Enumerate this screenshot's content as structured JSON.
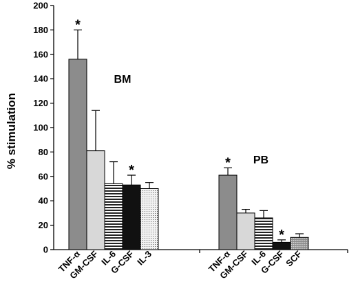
{
  "chart_data": {
    "type": "bar",
    "ylabel": "% stimulation",
    "ylim": [
      0,
      200
    ],
    "yticks": [
      0,
      20,
      40,
      60,
      80,
      100,
      120,
      140,
      160,
      180,
      200
    ],
    "grid": false,
    "groups": [
      {
        "name": "BM",
        "bars": [
          {
            "category": "TNF-α",
            "value": 156,
            "error": 24,
            "significant": true,
            "fill": "gray"
          },
          {
            "category": "GM-CSF",
            "value": 81,
            "error": 33,
            "significant": false,
            "fill": "lightgray"
          },
          {
            "category": "IL-6",
            "value": 54,
            "error": 18,
            "significant": false,
            "fill": "hstripe"
          },
          {
            "category": "G-CSF",
            "value": 53,
            "error": 8,
            "significant": true,
            "fill": "black"
          },
          {
            "category": "IL-3",
            "value": 50,
            "error": 5,
            "significant": false,
            "fill": "dots"
          }
        ]
      },
      {
        "name": "PB",
        "bars": [
          {
            "category": "TNF-α",
            "value": 61,
            "error": 6,
            "significant": true,
            "fill": "gray"
          },
          {
            "category": "GM-CSF",
            "value": 30,
            "error": 3,
            "significant": false,
            "fill": "lightgray"
          },
          {
            "category": "IL-6",
            "value": 26,
            "error": 6,
            "significant": false,
            "fill": "hstripe"
          },
          {
            "category": "G-CSF",
            "value": 6,
            "error": 2,
            "significant": true,
            "fill": "black"
          },
          {
            "category": "SCF",
            "value": 10,
            "error": 3,
            "significant": false,
            "fill": "crosshatch"
          }
        ]
      }
    ],
    "significance_marker": "*"
  }
}
